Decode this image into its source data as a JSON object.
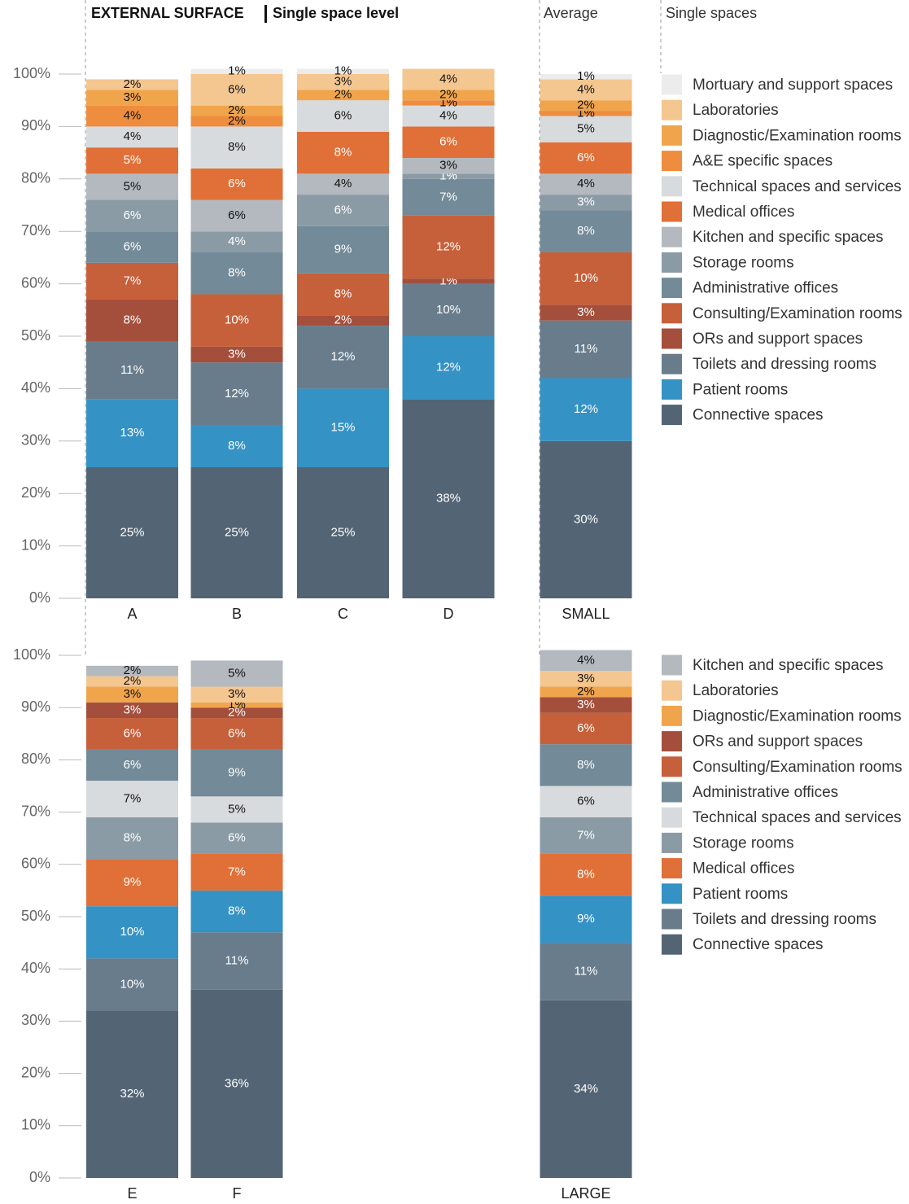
{
  "header": {
    "title": "EXTERNAL SURFACE",
    "subtitle": "Single space level",
    "average_label": "Average",
    "legend_title": "Single spaces"
  },
  "chart_data": [
    {
      "type": "stacked_bar",
      "categories": [
        "A",
        "B",
        "C",
        "D",
        "SMALL"
      ],
      "ylim": [
        0,
        100
      ],
      "yticks": [
        {
          "value": 0,
          "label": "0%"
        },
        {
          "value": 10,
          "label": "10%"
        },
        {
          "value": 20,
          "label": "20%"
        },
        {
          "value": 30,
          "label": "30%"
        },
        {
          "value": 40,
          "label": "40%"
        },
        {
          "value": 50,
          "label": "50%"
        },
        {
          "value": 60,
          "label": "60%"
        },
        {
          "value": 70,
          "label": "70%"
        },
        {
          "value": 80,
          "label": "80%"
        },
        {
          "value": 90,
          "label": "90%"
        },
        {
          "value": 100,
          "label": "100%"
        }
      ],
      "series": [
        {
          "name": "Connective spaces",
          "color": "#536474",
          "values": [
            25,
            25,
            25,
            38,
            30
          ],
          "value_labels": [
            "25%",
            "25%",
            "25%",
            "38%",
            "30%"
          ]
        },
        {
          "name": "Patient rooms",
          "color": "#3592c4",
          "values": [
            13,
            8,
            15,
            12,
            12
          ],
          "value_labels": [
            "13%",
            "8%",
            "15%",
            "12%",
            "12%"
          ]
        },
        {
          "name": "Toilets and dressing rooms",
          "color": "#687c8c",
          "values": [
            11,
            12,
            12,
            10,
            11
          ],
          "value_labels": [
            "11%",
            "12%",
            "12%",
            "10%",
            "11%"
          ]
        },
        {
          "name": "ORs and support spaces",
          "color": "#a44f3c",
          "values": [
            8,
            3,
            2,
            1,
            3
          ],
          "value_labels": [
            "8%",
            "3%",
            "2%",
            "1%",
            "3%"
          ]
        },
        {
          "name": "Consulting/Examination rooms",
          "color": "#c6603a",
          "values": [
            7,
            10,
            8,
            12,
            10
          ],
          "value_labels": [
            "7%",
            "10%",
            "8%",
            "12%",
            "10%"
          ]
        },
        {
          "name": "Administrative offices",
          "color": "#738a98",
          "values": [
            6,
            8,
            9,
            7,
            8
          ],
          "value_labels": [
            "6%",
            "8%",
            "9%",
            "7%",
            "8%"
          ]
        },
        {
          "name": "Storage rooms",
          "color": "#8a9ba6",
          "values": [
            6,
            4,
            6,
            1,
            3
          ],
          "value_labels": [
            "6%",
            "4%",
            "6%",
            "1%",
            "3%"
          ]
        },
        {
          "name": "Kitchen and specific spaces",
          "color": "#b3b9bf",
          "values": [
            5,
            6,
            4,
            3,
            4
          ],
          "value_labels": [
            "5%",
            "6%",
            "4%",
            "3%",
            "4%"
          ]
        },
        {
          "name": "Medical offices",
          "color": "#e07038",
          "values": [
            5,
            6,
            8,
            6,
            6
          ],
          "value_labels": [
            "5%",
            "6%",
            "8%",
            "6%",
            "6%"
          ]
        },
        {
          "name": "Technical spaces and services",
          "color": "#d8dbdd",
          "values": [
            4,
            8,
            6,
            4,
            5
          ],
          "value_labels": [
            "4%",
            "8%",
            "6%",
            "4%",
            "5%"
          ]
        },
        {
          "name": "A&E specific spaces",
          "color": "#ee8d3e",
          "values": [
            4,
            2,
            null,
            1,
            1
          ],
          "value_labels": [
            "4%",
            "2%",
            null,
            "1%",
            "1%"
          ]
        },
        {
          "name": "Diagnostic/Examination rooms",
          "color": "#f0a54c",
          "values": [
            3,
            2,
            2,
            2,
            2
          ],
          "value_labels": [
            "3%",
            "2%",
            "2%",
            "2%",
            "2%"
          ]
        },
        {
          "name": "Laboratories",
          "color": "#f4c690",
          "values": [
            2,
            6,
            3,
            4,
            4
          ],
          "value_labels": [
            "2%",
            "6%",
            "3%",
            "4%",
            "4%"
          ]
        },
        {
          "name": "Mortuary and support spaces",
          "color": "#ececec",
          "values": [
            null,
            1,
            1,
            null,
            1
          ],
          "value_labels": [
            null,
            "1%",
            "1%",
            null,
            "1%"
          ]
        }
      ]
    },
    {
      "type": "stacked_bar",
      "categories": [
        "E",
        "F",
        null,
        null,
        "LARGE"
      ],
      "ylim": [
        0,
        100
      ],
      "yticks": [
        {
          "value": 0,
          "label": "0%"
        },
        {
          "value": 10,
          "label": "10%"
        },
        {
          "value": 20,
          "label": "20%"
        },
        {
          "value": 30,
          "label": "30%"
        },
        {
          "value": 40,
          "label": "40%"
        },
        {
          "value": 50,
          "label": "50%"
        },
        {
          "value": 60,
          "label": "60%"
        },
        {
          "value": 70,
          "label": "70%"
        },
        {
          "value": 80,
          "label": "80%"
        },
        {
          "value": 90,
          "label": "90%"
        },
        {
          "value": 100,
          "label": "100%"
        }
      ],
      "series": [
        {
          "name": "Connective spaces",
          "color": "#536474",
          "values": [
            32,
            36,
            null,
            null,
            34
          ],
          "value_labels": [
            "32%",
            "36%",
            null,
            null,
            "34%"
          ]
        },
        {
          "name": "Toilets and dressing rooms",
          "color": "#687c8c",
          "values": [
            10,
            11,
            null,
            null,
            11
          ],
          "value_labels": [
            "10%",
            "11%",
            null,
            null,
            "11%"
          ]
        },
        {
          "name": "Patient rooms",
          "color": "#3592c4",
          "values": [
            10,
            8,
            null,
            null,
            9
          ],
          "value_labels": [
            "10%",
            "8%",
            null,
            null,
            "9%"
          ]
        },
        {
          "name": "Medical offices",
          "color": "#e07038",
          "values": [
            9,
            7,
            null,
            null,
            8
          ],
          "value_labels": [
            "9%",
            "7%",
            null,
            null,
            "8%"
          ]
        },
        {
          "name": "Storage rooms",
          "color": "#8a9ba6",
          "values": [
            8,
            6,
            null,
            null,
            7
          ],
          "value_labels": [
            "8%",
            "6%",
            null,
            null,
            "7%"
          ]
        },
        {
          "name": "Technical spaces and services",
          "color": "#d8dbdd",
          "values": [
            7,
            5,
            null,
            null,
            6
          ],
          "value_labels": [
            "7%",
            "5%",
            null,
            null,
            "6%"
          ]
        },
        {
          "name": "Administrative offices",
          "color": "#738a98",
          "values": [
            6,
            9,
            null,
            null,
            8
          ],
          "value_labels": [
            "6%",
            "9%",
            null,
            null,
            "8%"
          ]
        },
        {
          "name": "Consulting/Examination rooms",
          "color": "#c6603a",
          "values": [
            6,
            6,
            null,
            null,
            6
          ],
          "value_labels": [
            "6%",
            "6%",
            null,
            null,
            "6%"
          ]
        },
        {
          "name": "ORs and support spaces",
          "color": "#a44f3c",
          "values": [
            3,
            2,
            null,
            null,
            3
          ],
          "value_labels": [
            "3%",
            "2%",
            null,
            null,
            "3%"
          ]
        },
        {
          "name": "Diagnostic/Examination rooms",
          "color": "#f0a54c",
          "values": [
            3,
            1,
            null,
            null,
            2
          ],
          "value_labels": [
            "3%",
            "1%",
            null,
            null,
            "2%"
          ]
        },
        {
          "name": "Laboratories",
          "color": "#f4c690",
          "values": [
            2,
            3,
            null,
            null,
            3
          ],
          "value_labels": [
            "2%",
            "3%",
            null,
            null,
            "3%"
          ]
        },
        {
          "name": "Kitchen and specific spaces",
          "color": "#b3b9bf",
          "values": [
            2,
            5,
            null,
            null,
            4
          ],
          "value_labels": [
            "2%",
            "5%",
            null,
            null,
            "4%"
          ]
        }
      ]
    }
  ]
}
